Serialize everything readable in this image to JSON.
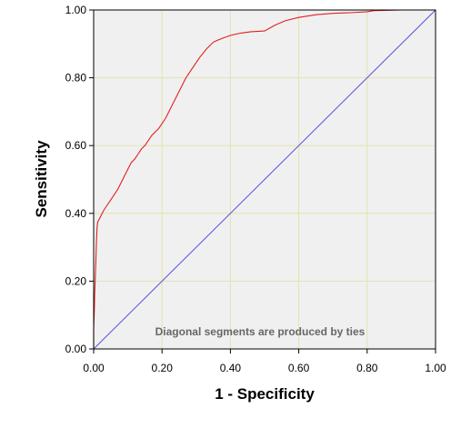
{
  "chart_data": {
    "type": "line",
    "xlabel": "1 - Specificity",
    "ylabel": "Sensitivity",
    "xlim": [
      0,
      1
    ],
    "ylim": [
      0,
      1
    ],
    "x_ticks": [
      "0.00",
      "0.20",
      "0.40",
      "0.60",
      "0.80",
      "1.00"
    ],
    "y_ticks": [
      "0.00",
      "0.20",
      "0.40",
      "0.60",
      "0.80",
      "1.00"
    ],
    "grid": true,
    "annotation": "Diagonal segments are produced by ties",
    "colors": {
      "plot_background": "#f0f0f0",
      "grid": "#e3e3b0",
      "roc_curve": "#e02020",
      "reference_line": "#5050e0"
    },
    "series": [
      {
        "x": [
          0.0,
          0.0,
          0.002,
          0.003,
          0.004,
          0.005,
          0.006,
          0.008,
          0.01,
          0.012,
          0.015,
          0.02,
          0.025,
          0.03,
          0.04,
          0.05,
          0.06,
          0.07,
          0.08,
          0.09,
          0.1,
          0.11,
          0.12,
          0.13,
          0.14,
          0.15,
          0.17,
          0.19,
          0.21,
          0.23,
          0.25,
          0.27,
          0.29,
          0.31,
          0.33,
          0.35,
          0.36,
          0.38,
          0.4,
          0.43,
          0.46,
          0.5,
          0.53,
          0.56,
          0.6,
          0.65,
          0.7,
          0.75,
          0.8,
          0.82,
          0.85,
          0.9,
          0.95,
          1.0
        ],
        "y": [
          0.0,
          0.06,
          0.12,
          0.16,
          0.19,
          0.22,
          0.25,
          0.31,
          0.36,
          0.375,
          0.38,
          0.39,
          0.4,
          0.41,
          0.425,
          0.44,
          0.455,
          0.47,
          0.49,
          0.51,
          0.53,
          0.55,
          0.56,
          0.575,
          0.59,
          0.6,
          0.63,
          0.65,
          0.68,
          0.72,
          0.76,
          0.8,
          0.83,
          0.86,
          0.885,
          0.905,
          0.91,
          0.918,
          0.925,
          0.932,
          0.936,
          0.938,
          0.955,
          0.968,
          0.978,
          0.986,
          0.99,
          0.992,
          0.995,
          0.998,
          0.999,
          1.0,
          1.0,
          1.0
        ]
      },
      {
        "x": [
          0,
          1
        ],
        "y": [
          0,
          1
        ]
      }
    ]
  }
}
